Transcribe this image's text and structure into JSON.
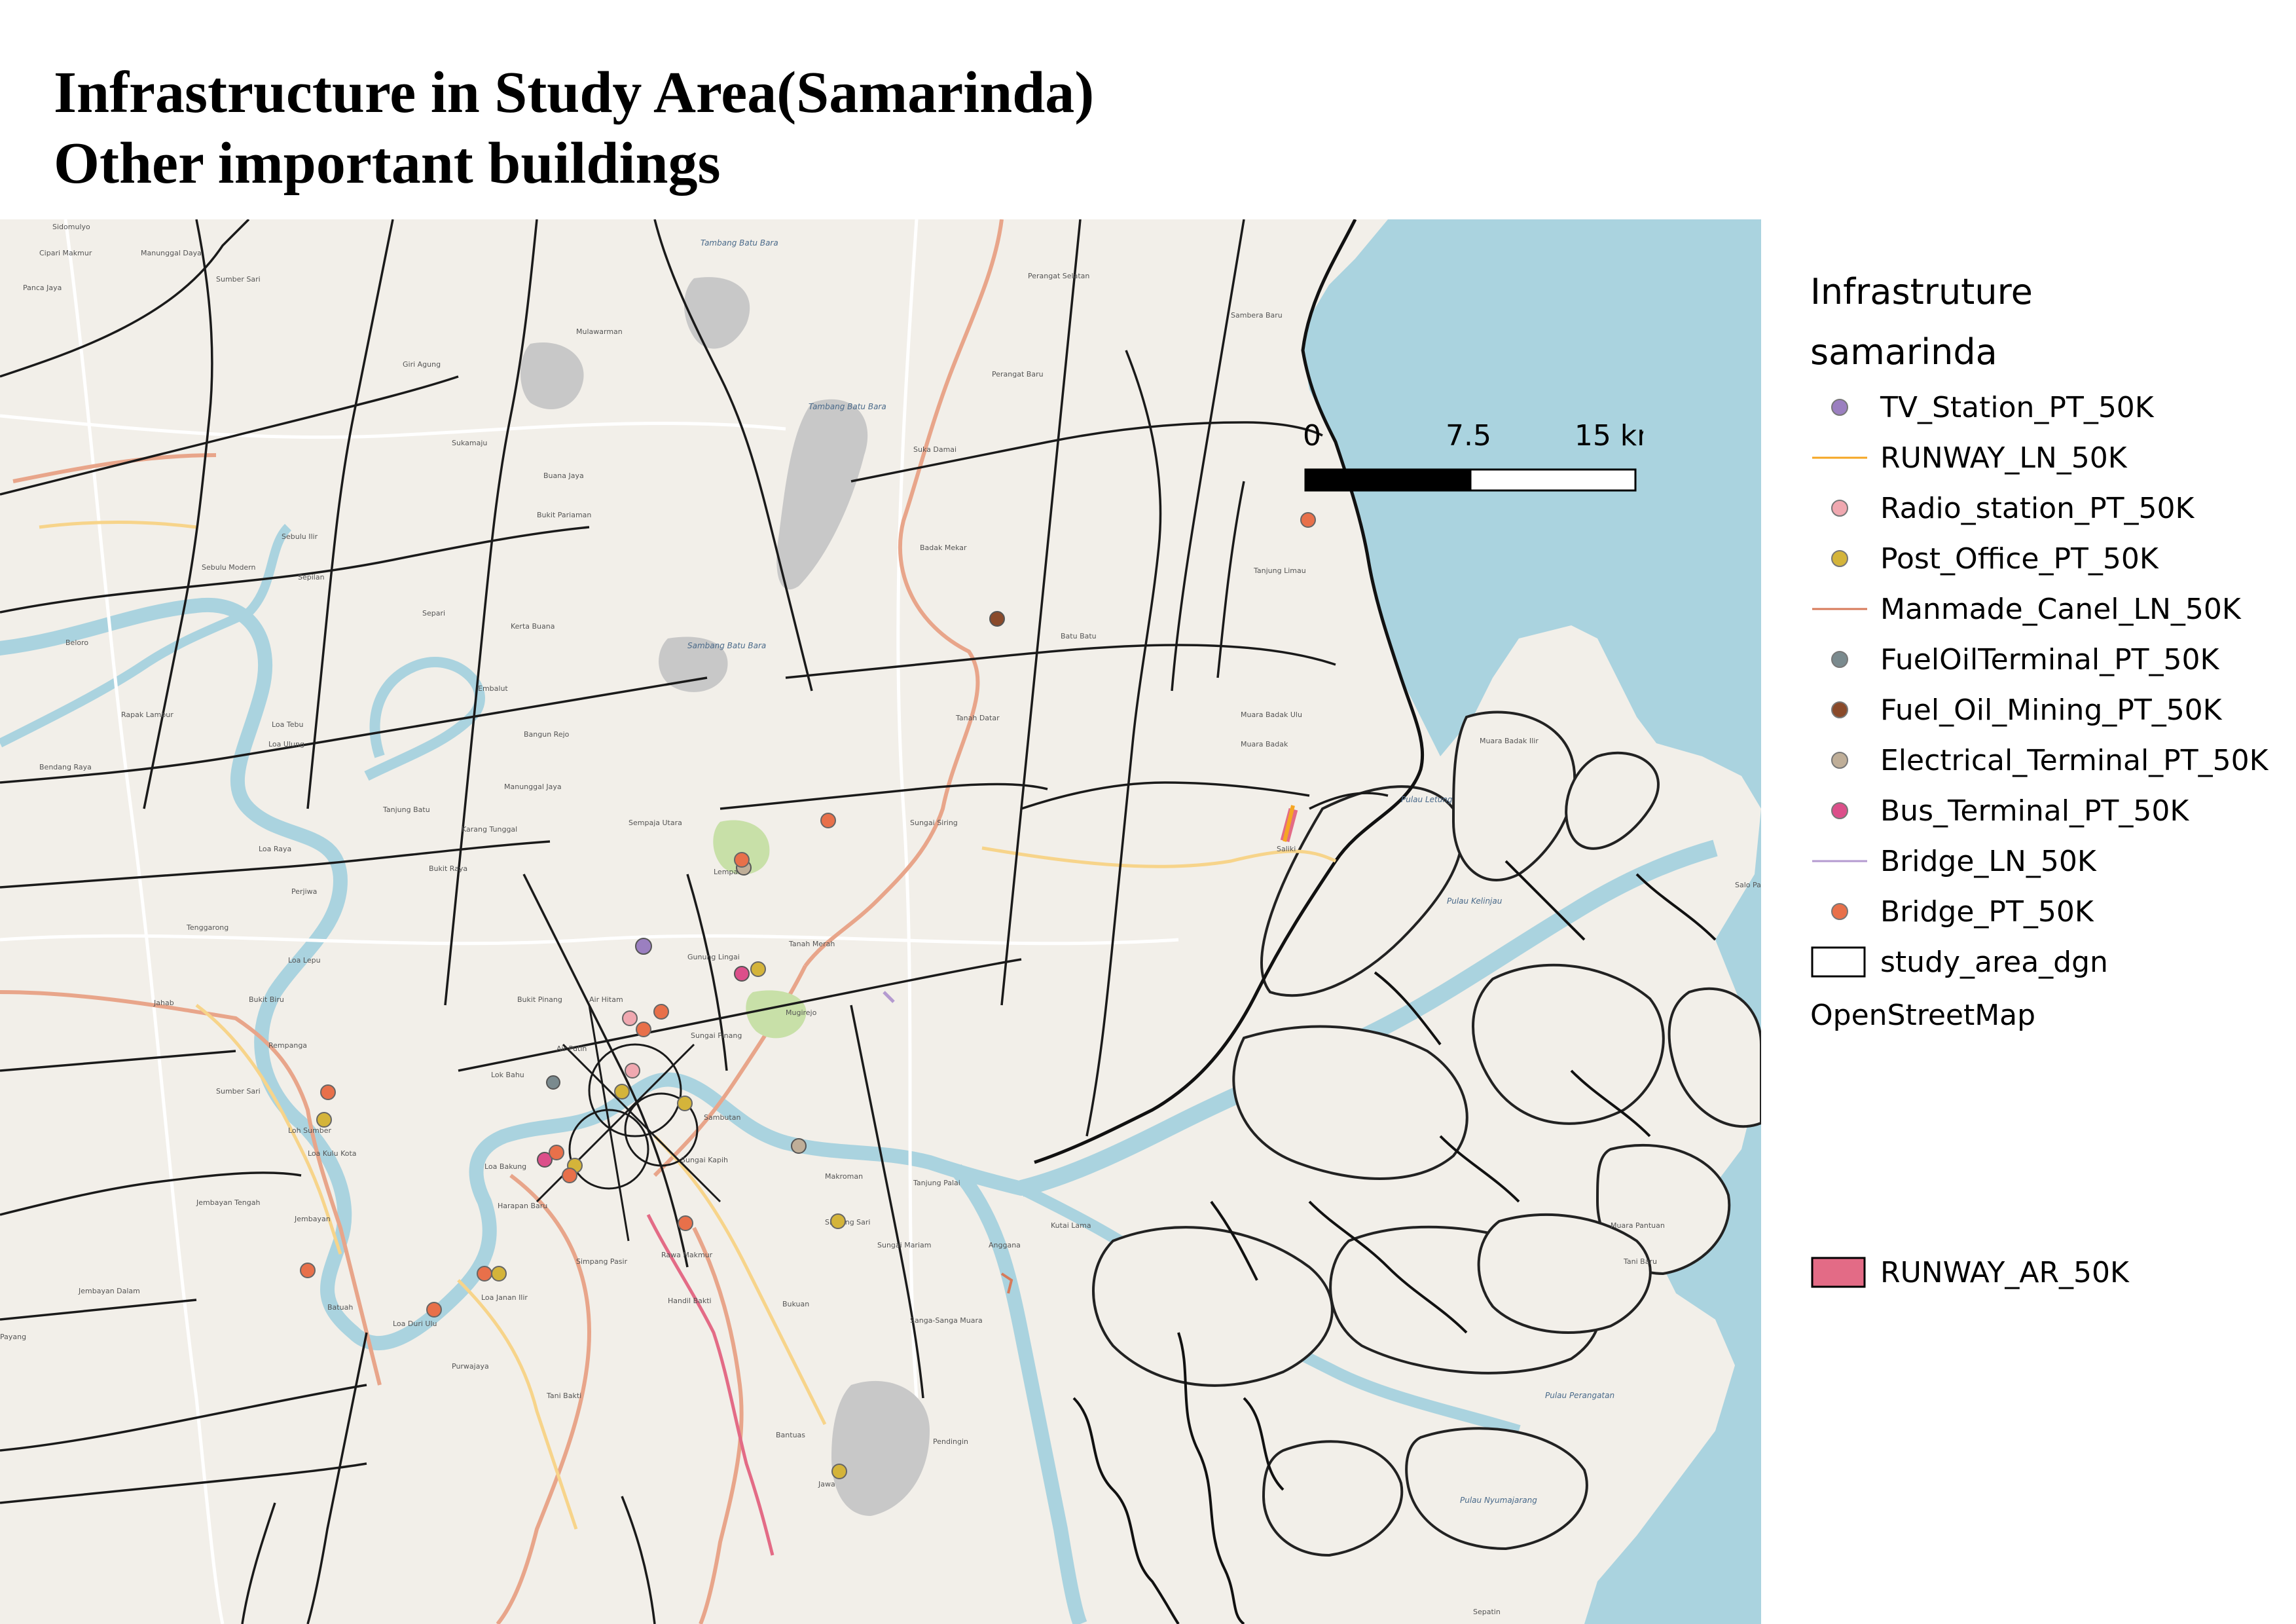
{
  "title": {
    "line1": "Infrastructure in Study Area(Samarinda)",
    "line2": "Other important buildings"
  },
  "scale_bar": {
    "labels": [
      "0",
      "7.5",
      "15 km"
    ],
    "colors": [
      "#000000",
      "#ffffff"
    ]
  },
  "legend": {
    "group_title": "Infrastruture",
    "layer_title": "samarinda",
    "items": [
      {
        "label": "TV_Station_PT_50K",
        "symbol": "point",
        "color": "#9b7fc0"
      },
      {
        "label": "RUNWAY_LN_50K",
        "symbol": "line",
        "color": "#f5a623"
      },
      {
        "label": "Radio_station_PT_50K",
        "symbol": "point",
        "color": "#f0a8b0"
      },
      {
        "label": "Post_Office_PT_50K",
        "symbol": "point",
        "color": "#d4b43a"
      },
      {
        "label": "Manmade_Canel_LN_50K",
        "symbol": "line",
        "color": "#d77a5a"
      },
      {
        "label": "FuelOilTerminal_PT_50K",
        "symbol": "point",
        "color": "#7a8a8e"
      },
      {
        "label": "Fuel_Oil_Mining_PT_50K",
        "symbol": "point",
        "color": "#8a4a2a"
      },
      {
        "label": "Electrical_Terminal_PT_50K",
        "symbol": "point",
        "color": "#bfae98"
      },
      {
        "label": "Bus_Terminal_PT_50K",
        "symbol": "point",
        "color": "#dc4f8a"
      },
      {
        "label": "Bridge_LN_50K",
        "symbol": "line",
        "color": "#b49ad0"
      },
      {
        "label": "Bridge_PT_50K",
        "symbol": "point",
        "color": "#e8704a"
      },
      {
        "label": "study_area_dgn",
        "symbol": "polygon-outline",
        "color": "#000000"
      }
    ],
    "basemap": "OpenStreetMap",
    "runway_area": {
      "label": "RUNWAY_AR_50K",
      "color": "#e36b86"
    }
  },
  "map": {
    "colors": {
      "land": "#f2efe9",
      "water": "#aad3df",
      "river_edge": "#7fb3c8",
      "boundary": "#1a1a1a",
      "major_road": "#e8a58a",
      "secondary_road": "#f7d48a",
      "minor_road": "#ffffff",
      "mining": "#c8c8c8",
      "park": "#c8e0a8"
    },
    "place_labels": [
      "Sidomulyo",
      "Cipari Makmur",
      "Manunggal Daya",
      "Sumber Sari",
      "Panca Jaya",
      "Mulawarman",
      "Tambang Batu Bara",
      "Perangat Selatan",
      "Sambera Baru",
      "Giri Agung",
      "Perangat Baru",
      "Sukamaju",
      "Buana Jaya",
      "Tambang Batu Bara",
      "Suka Damai",
      "Bukit Pariaman",
      "Sebulu Ilir",
      "Sebulu Modern",
      "Sepilan",
      "Badak Mekar",
      "Tanjung Limau",
      "Separi",
      "Kerta Buana",
      "Batu Batu",
      "Beloro",
      "Embalut",
      "Sambang Batu Bara",
      "Tanah Datar",
      "Muara Badak Ulu",
      "Bangun Rejo",
      "Rapak Lambur",
      "Loa Tebu",
      "Loa Ulung",
      "Muara Badak",
      "Muara Badak Ilir",
      "Bendang Raya",
      "Manunggal Jaya",
      "Tanjung Batu",
      "Karang Tunggal",
      "Sempaja Utara",
      "Sungai Siring",
      "Saliki",
      "Loa Raya",
      "Perjiwa",
      "Bukit Raya",
      "Lempake",
      "Pulau Kelinjau",
      "Tenggarong",
      "Loa Lepu",
      "Gunung Lingai",
      "Tanah Merah",
      "Bukit Biru",
      "Jahab",
      "Bukit Pinang",
      "Air Hitam",
      "Mugirejo",
      "Rempanga",
      "Sungai Pinang",
      "Air Putih",
      "Sumber Sari",
      "Loh Sumber",
      "Lok Bahu",
      "Sambutan",
      "Loa Kulu Kota",
      "Sungai Kapih",
      "Jembayan Tengah",
      "Loa Bakung",
      "Makroman",
      "Sindang Sari",
      "Tanjung Palai",
      "Jembayan",
      "Harapan Baru",
      "Rawa Makmur",
      "Simpang Pasir",
      "Sungai Mariam",
      "Kutai Lama",
      "Anggana",
      "Handil Bakti",
      "Bukuan",
      "Loa Janan Ilir",
      "Tani Bakti",
      "Loa Duri Ulu",
      "Jembayan Dalam",
      "Payang",
      "Purwajaya",
      "Batuah",
      "Bantuas",
      "Sanga-Sanga Muara",
      "Pendingin",
      "Jawa",
      "Pulau Perangatan",
      "Pulau Nyumajarang",
      "Sepatin",
      "Tani Baru",
      "Muara Pantuan",
      "Salo Palai",
      "Pulau Letung"
    ]
  }
}
